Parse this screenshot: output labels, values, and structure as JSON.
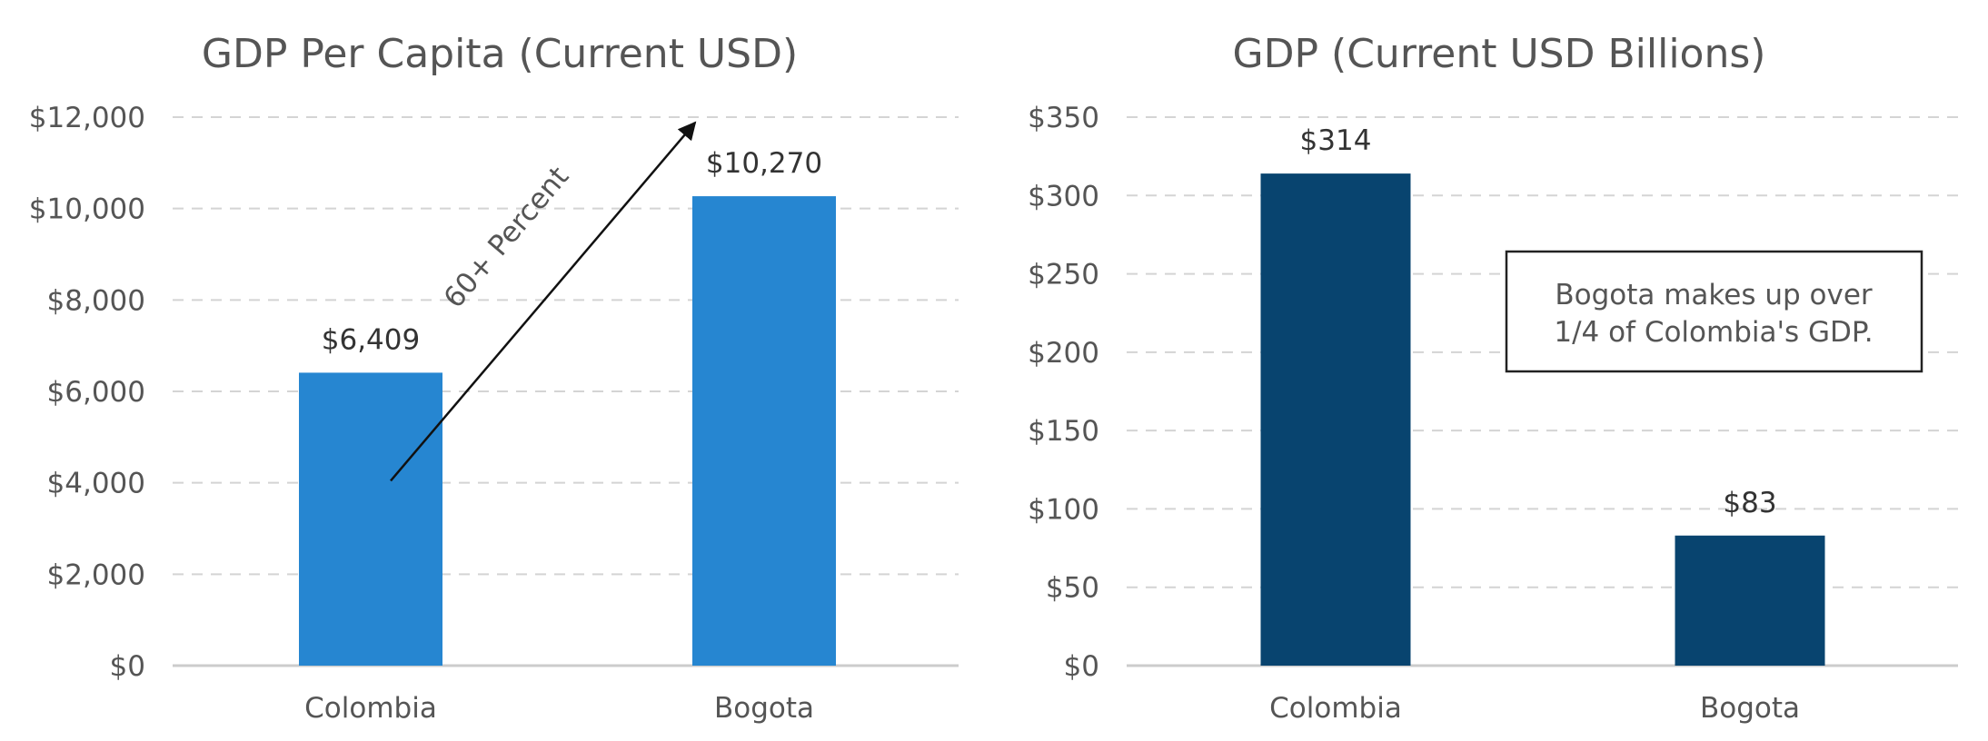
{
  "chart_data": [
    {
      "type": "bar",
      "title": "GDP Per Capita (Current USD)",
      "categories": [
        "Colombia",
        "Bogota"
      ],
      "values": [
        6409,
        10270
      ],
      "value_labels": [
        "$6,409",
        "$10,270"
      ],
      "ylim": [
        0,
        12000
      ],
      "yticks": [
        0,
        2000,
        4000,
        6000,
        8000,
        10000,
        12000
      ],
      "ytick_labels": [
        "$0",
        "$2,000",
        "$4,000",
        "$6,000",
        "$8,000",
        "$10,000",
        "$12,000"
      ],
      "grid": true,
      "bar_color": "#2686D1",
      "annotation": {
        "text": "60+ Percent",
        "from_value": 6409,
        "to_value": 10270
      }
    },
    {
      "type": "bar",
      "title": "GDP (Current USD Billions)",
      "categories": [
        "Colombia",
        "Bogota"
      ],
      "values": [
        314,
        83
      ],
      "value_labels": [
        "$314",
        "$83"
      ],
      "ylim": [
        0,
        350
      ],
      "yticks": [
        0,
        50,
        100,
        150,
        200,
        250,
        300,
        350
      ],
      "ytick_labels": [
        "$0",
        "$50",
        "$100",
        "$150",
        "$200",
        "$250",
        "$300",
        "$350"
      ],
      "grid": true,
      "bar_color": "#08446F",
      "annotation": {
        "lines": [
          "Bogota makes up over",
          "1/4 of Colombia's GDP."
        ]
      }
    }
  ]
}
